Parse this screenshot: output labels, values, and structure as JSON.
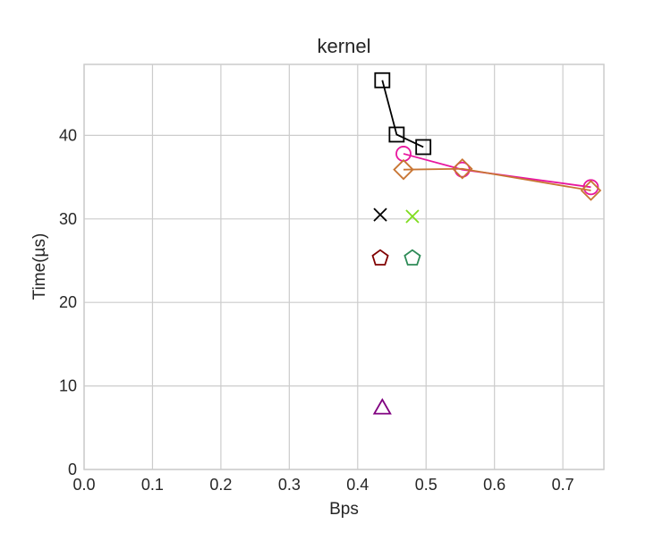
{
  "chart_data": {
    "type": "scatter",
    "title": "kernel",
    "xlabel": "Bps",
    "ylabel": "Time(µs)",
    "xlim": [
      0.0,
      0.76
    ],
    "ylim": [
      0,
      48.5
    ],
    "xticks": [
      0.0,
      0.1,
      0.2,
      0.3,
      0.4,
      0.5,
      0.6,
      0.7
    ],
    "xtick_labels": [
      "0.0",
      "0.1",
      "0.2",
      "0.3",
      "0.4",
      "0.5",
      "0.6",
      "0.7"
    ],
    "yticks": [
      0,
      10,
      20,
      30,
      40
    ],
    "ytick_labels": [
      "0",
      "10",
      "20",
      "30",
      "40"
    ],
    "grid": true,
    "legend": "none",
    "series": [
      {
        "marker": "square",
        "color": "#000000",
        "line": true,
        "x": [
          0.436,
          0.457,
          0.496
        ],
        "y": [
          46.6,
          40.1,
          38.6
        ]
      },
      {
        "marker": "circle",
        "color": "#e8179f",
        "line": true,
        "x": [
          0.467,
          0.553,
          0.741
        ],
        "y": [
          37.8,
          35.9,
          33.8
        ]
      },
      {
        "marker": "diamond",
        "color": "#c87533",
        "line": true,
        "x": [
          0.467,
          0.553,
          0.741
        ],
        "y": [
          35.9,
          36.0,
          33.4
        ]
      },
      {
        "marker": "x",
        "color": "#000000",
        "line": false,
        "x": [
          0.433
        ],
        "y": [
          30.5
        ]
      },
      {
        "marker": "x",
        "color": "#7fdc1e",
        "line": false,
        "x": [
          0.48
        ],
        "y": [
          30.3
        ]
      },
      {
        "marker": "pentagon",
        "color": "#800000",
        "line": false,
        "x": [
          0.433
        ],
        "y": [
          25.3
        ]
      },
      {
        "marker": "pentagon",
        "color": "#2e8b57",
        "line": false,
        "x": [
          0.48
        ],
        "y": [
          25.3
        ]
      },
      {
        "marker": "triangle",
        "color": "#800080",
        "line": false,
        "x": [
          0.436
        ],
        "y": [
          7.4
        ]
      }
    ]
  }
}
